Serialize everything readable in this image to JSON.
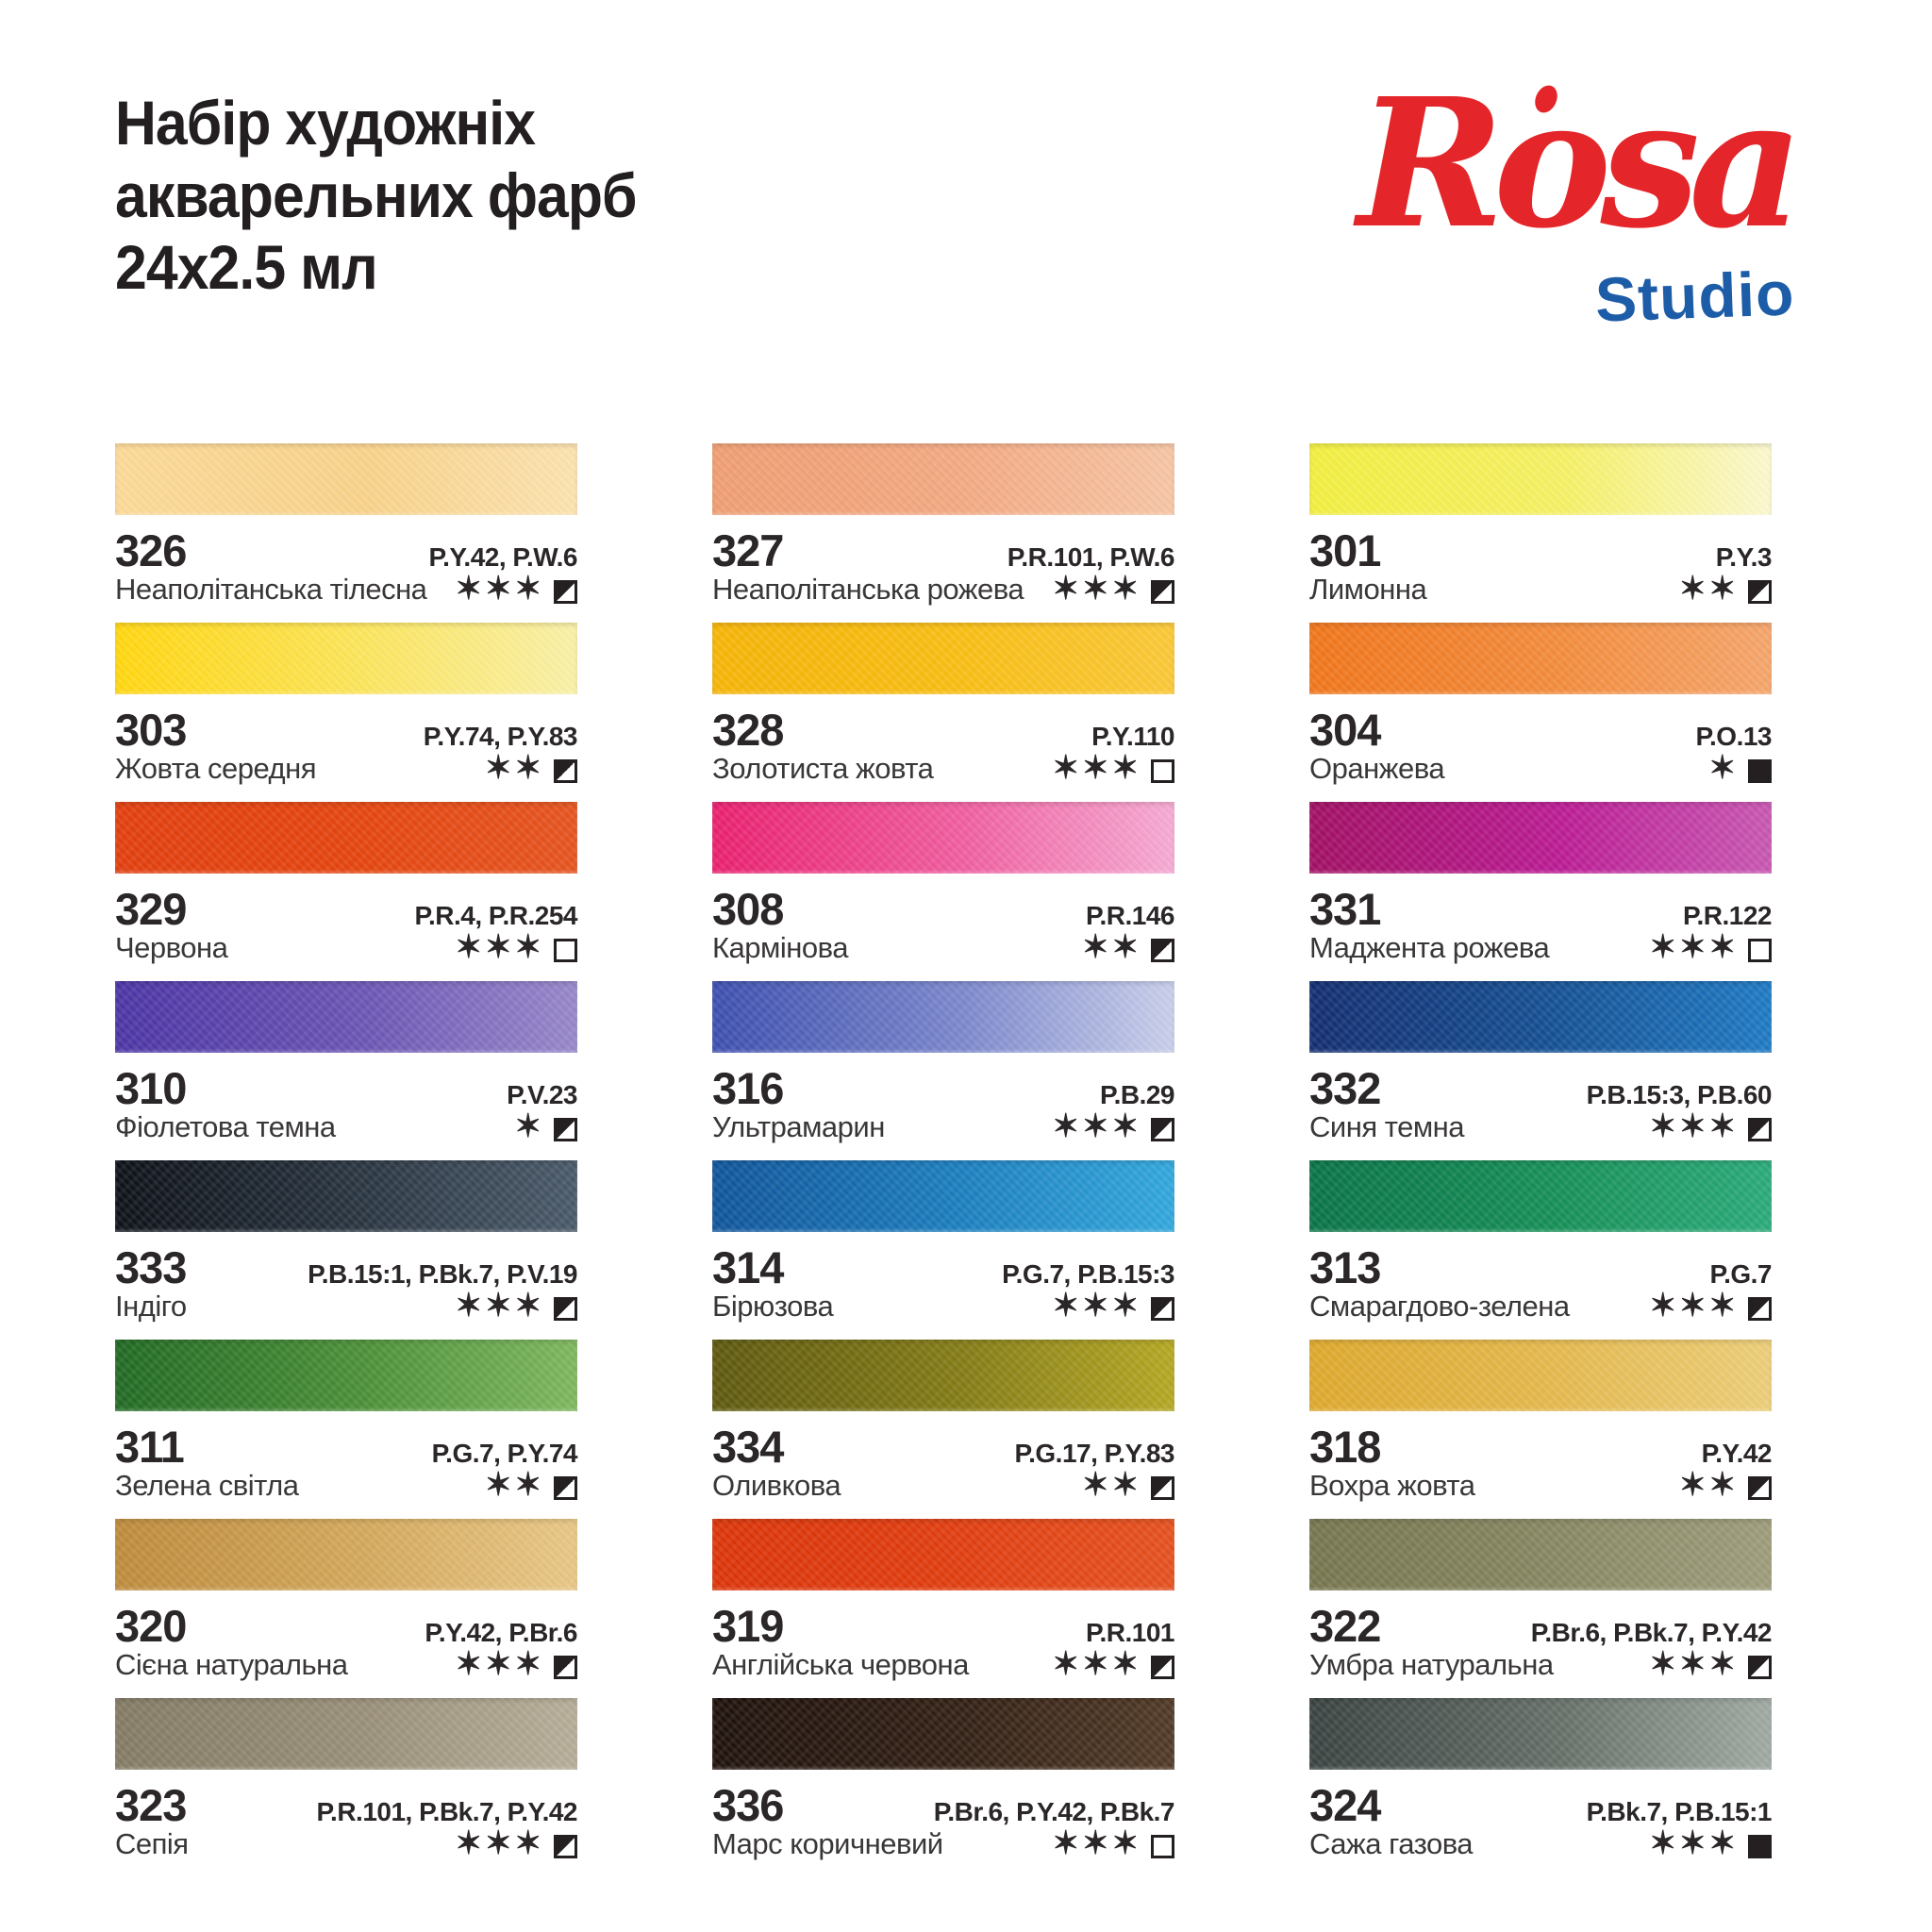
{
  "header": {
    "title_lines": [
      "Набір художніх",
      "акварельних фарб",
      "24х2.5 мл"
    ],
    "logo": {
      "brand": "Rosa",
      "sub": "Studio",
      "brand_color": "#e4262a",
      "sub_color": "#1d5ca7"
    }
  },
  "legend": {
    "star_char": "✶"
  },
  "paints": [
    {
      "num": "326",
      "pigments": "P.Y.42, P.W.6",
      "name": "Неаполітанська тілесна",
      "stars": 3,
      "opacity": "semi",
      "colors": [
        "#FBD997",
        "#F8D28A",
        "#FBE2AF"
      ]
    },
    {
      "num": "327",
      "pigments": "P.R.101, P.W.6",
      "name": "Неаполітанська рожева",
      "stars": 3,
      "opacity": "semi",
      "colors": [
        "#EF9D72",
        "#F2A982",
        "#F6C5A5"
      ]
    },
    {
      "num": "301",
      "pigments": "P.Y.3",
      "name": "Лимонна",
      "stars": 2,
      "opacity": "semi",
      "colors": [
        "#F1EE40",
        "#F5F065",
        "#FBF8D0"
      ]
    },
    {
      "num": "303",
      "pigments": "P.Y.74, P.Y.83",
      "name": "Жовта середня",
      "stars": 2,
      "opacity": "semi",
      "colors": [
        "#FFD60F",
        "#FBE55E",
        "#F9F0A8"
      ]
    },
    {
      "num": "328",
      "pigments": "P.Y.110",
      "name": "Золотиста жовта",
      "stars": 3,
      "opacity": "transparent",
      "colors": [
        "#F5B407",
        "#F8BE14",
        "#FAC838"
      ]
    },
    {
      "num": "304",
      "pigments": "P.O.13",
      "name": "Оранжева",
      "stars": 1,
      "opacity": "opaque",
      "colors": [
        "#F0751A",
        "#F28C3D",
        "#F5A56C"
      ]
    },
    {
      "num": "329",
      "pigments": "P.R.4, P.R.254",
      "name": "Червона",
      "stars": 3,
      "opacity": "transparent",
      "colors": [
        "#E13E0E",
        "#E4450F",
        "#E55420"
      ]
    },
    {
      "num": "308",
      "pigments": "P.R.146",
      "name": "Кармінова",
      "stars": 2,
      "opacity": "semi",
      "colors": [
        "#E91F6E",
        "#EF5FA0",
        "#F5ABD4"
      ]
    },
    {
      "num": "331",
      "pigments": "P.R.122",
      "name": "Маджента рожева",
      "stars": 3,
      "opacity": "transparent",
      "colors": [
        "#A10F63",
        "#BB1C94",
        "#C858B2"
      ]
    },
    {
      "num": "310",
      "pigments": "P.V.23",
      "name": "Фіолетова темна",
      "stars": 1,
      "opacity": "semi",
      "colors": [
        "#4B34A4",
        "#6C56B4",
        "#9787CA"
      ]
    },
    {
      "num": "316",
      "pigments": "P.B.29",
      "name": "Ультрамарин",
      "stars": 3,
      "opacity": "semi",
      "colors": [
        "#3C4EAE",
        "#7C88CC",
        "#C9CFEA"
      ]
    },
    {
      "num": "332",
      "pigments": "P.B.15:3, P.B.60",
      "name": "Синя темна",
      "stars": 3,
      "opacity": "semi",
      "colors": [
        "#132D70",
        "#155295",
        "#1F7AC4"
      ]
    },
    {
      "num": "333",
      "pigments": "P.B.15:1, P.Bk.7, P.V.19",
      "name": "Індіго",
      "stars": 3,
      "opacity": "semi",
      "colors": [
        "#0D1118",
        "#2A3642",
        "#4A5A6A"
      ]
    },
    {
      "num": "314",
      "pigments": "P.G.7, P.B.15:3",
      "name": "Бірюзова",
      "stars": 3,
      "opacity": "semi",
      "colors": [
        "#0F549A",
        "#1C7FBE",
        "#32A7DC"
      ]
    },
    {
      "num": "313",
      "pigments": "P.G.7",
      "name": "Смарагдово-зелена",
      "stars": 3,
      "opacity": "semi",
      "colors": [
        "#097347",
        "#179058",
        "#2BAA7A"
      ]
    },
    {
      "num": "311",
      "pigments": "P.G.7, P.Y.74",
      "name": "Зелена світла",
      "stars": 2,
      "opacity": "semi",
      "colors": [
        "#206922",
        "#4C9038",
        "#7EB75E"
      ]
    },
    {
      "num": "334",
      "pigments": "P.G.17, P.Y.83",
      "name": "Оливкова",
      "stars": 2,
      "opacity": "semi",
      "colors": [
        "#5D580E",
        "#847C16",
        "#B5A723"
      ]
    },
    {
      "num": "318",
      "pigments": "P.Y.42",
      "name": "Вохра жовта",
      "stars": 2,
      "opacity": "semi",
      "colors": [
        "#DDA82C",
        "#E4B94F",
        "#ECCE79"
      ]
    },
    {
      "num": "320",
      "pigments": "P.Y.42, P.Br.6",
      "name": "Сієна натуральна",
      "stars": 3,
      "opacity": "semi",
      "colors": [
        "#BD8A3B",
        "#D3A85C",
        "#E8C786"
      ]
    },
    {
      "num": "319",
      "pigments": "P.R.101",
      "name": "Англійська червона",
      "stars": 3,
      "opacity": "semi",
      "colors": [
        "#DB3409",
        "#E03E10",
        "#E4511F"
      ]
    },
    {
      "num": "322",
      "pigments": "P.Br.6, P.Bk.7, P.Y.42",
      "name": "Умбра натуральна",
      "stars": 3,
      "opacity": "semi",
      "colors": [
        "#76754E",
        "#888763",
        "#9D9C7B"
      ]
    },
    {
      "num": "323",
      "pigments": "P.R.101, P.Bk.7, P.Y.42",
      "name": "Сепія",
      "stars": 3,
      "opacity": "semi",
      "colors": [
        "#837A64",
        "#998F79",
        "#B6AD98"
      ]
    },
    {
      "num": "336",
      "pigments": "P.Br.6, P.Y.42, P.Bk.7",
      "name": "Марс коричневий",
      "stars": 3,
      "opacity": "transparent",
      "colors": [
        "#1E110C",
        "#332115",
        "#513A27"
      ]
    },
    {
      "num": "324",
      "pigments": "P.Bk.7, P.B.15:1",
      "name": "Сажа газова",
      "stars": 3,
      "opacity": "opaque",
      "colors": [
        "#394240",
        "#667069",
        "#A0A9A2"
      ]
    }
  ]
}
